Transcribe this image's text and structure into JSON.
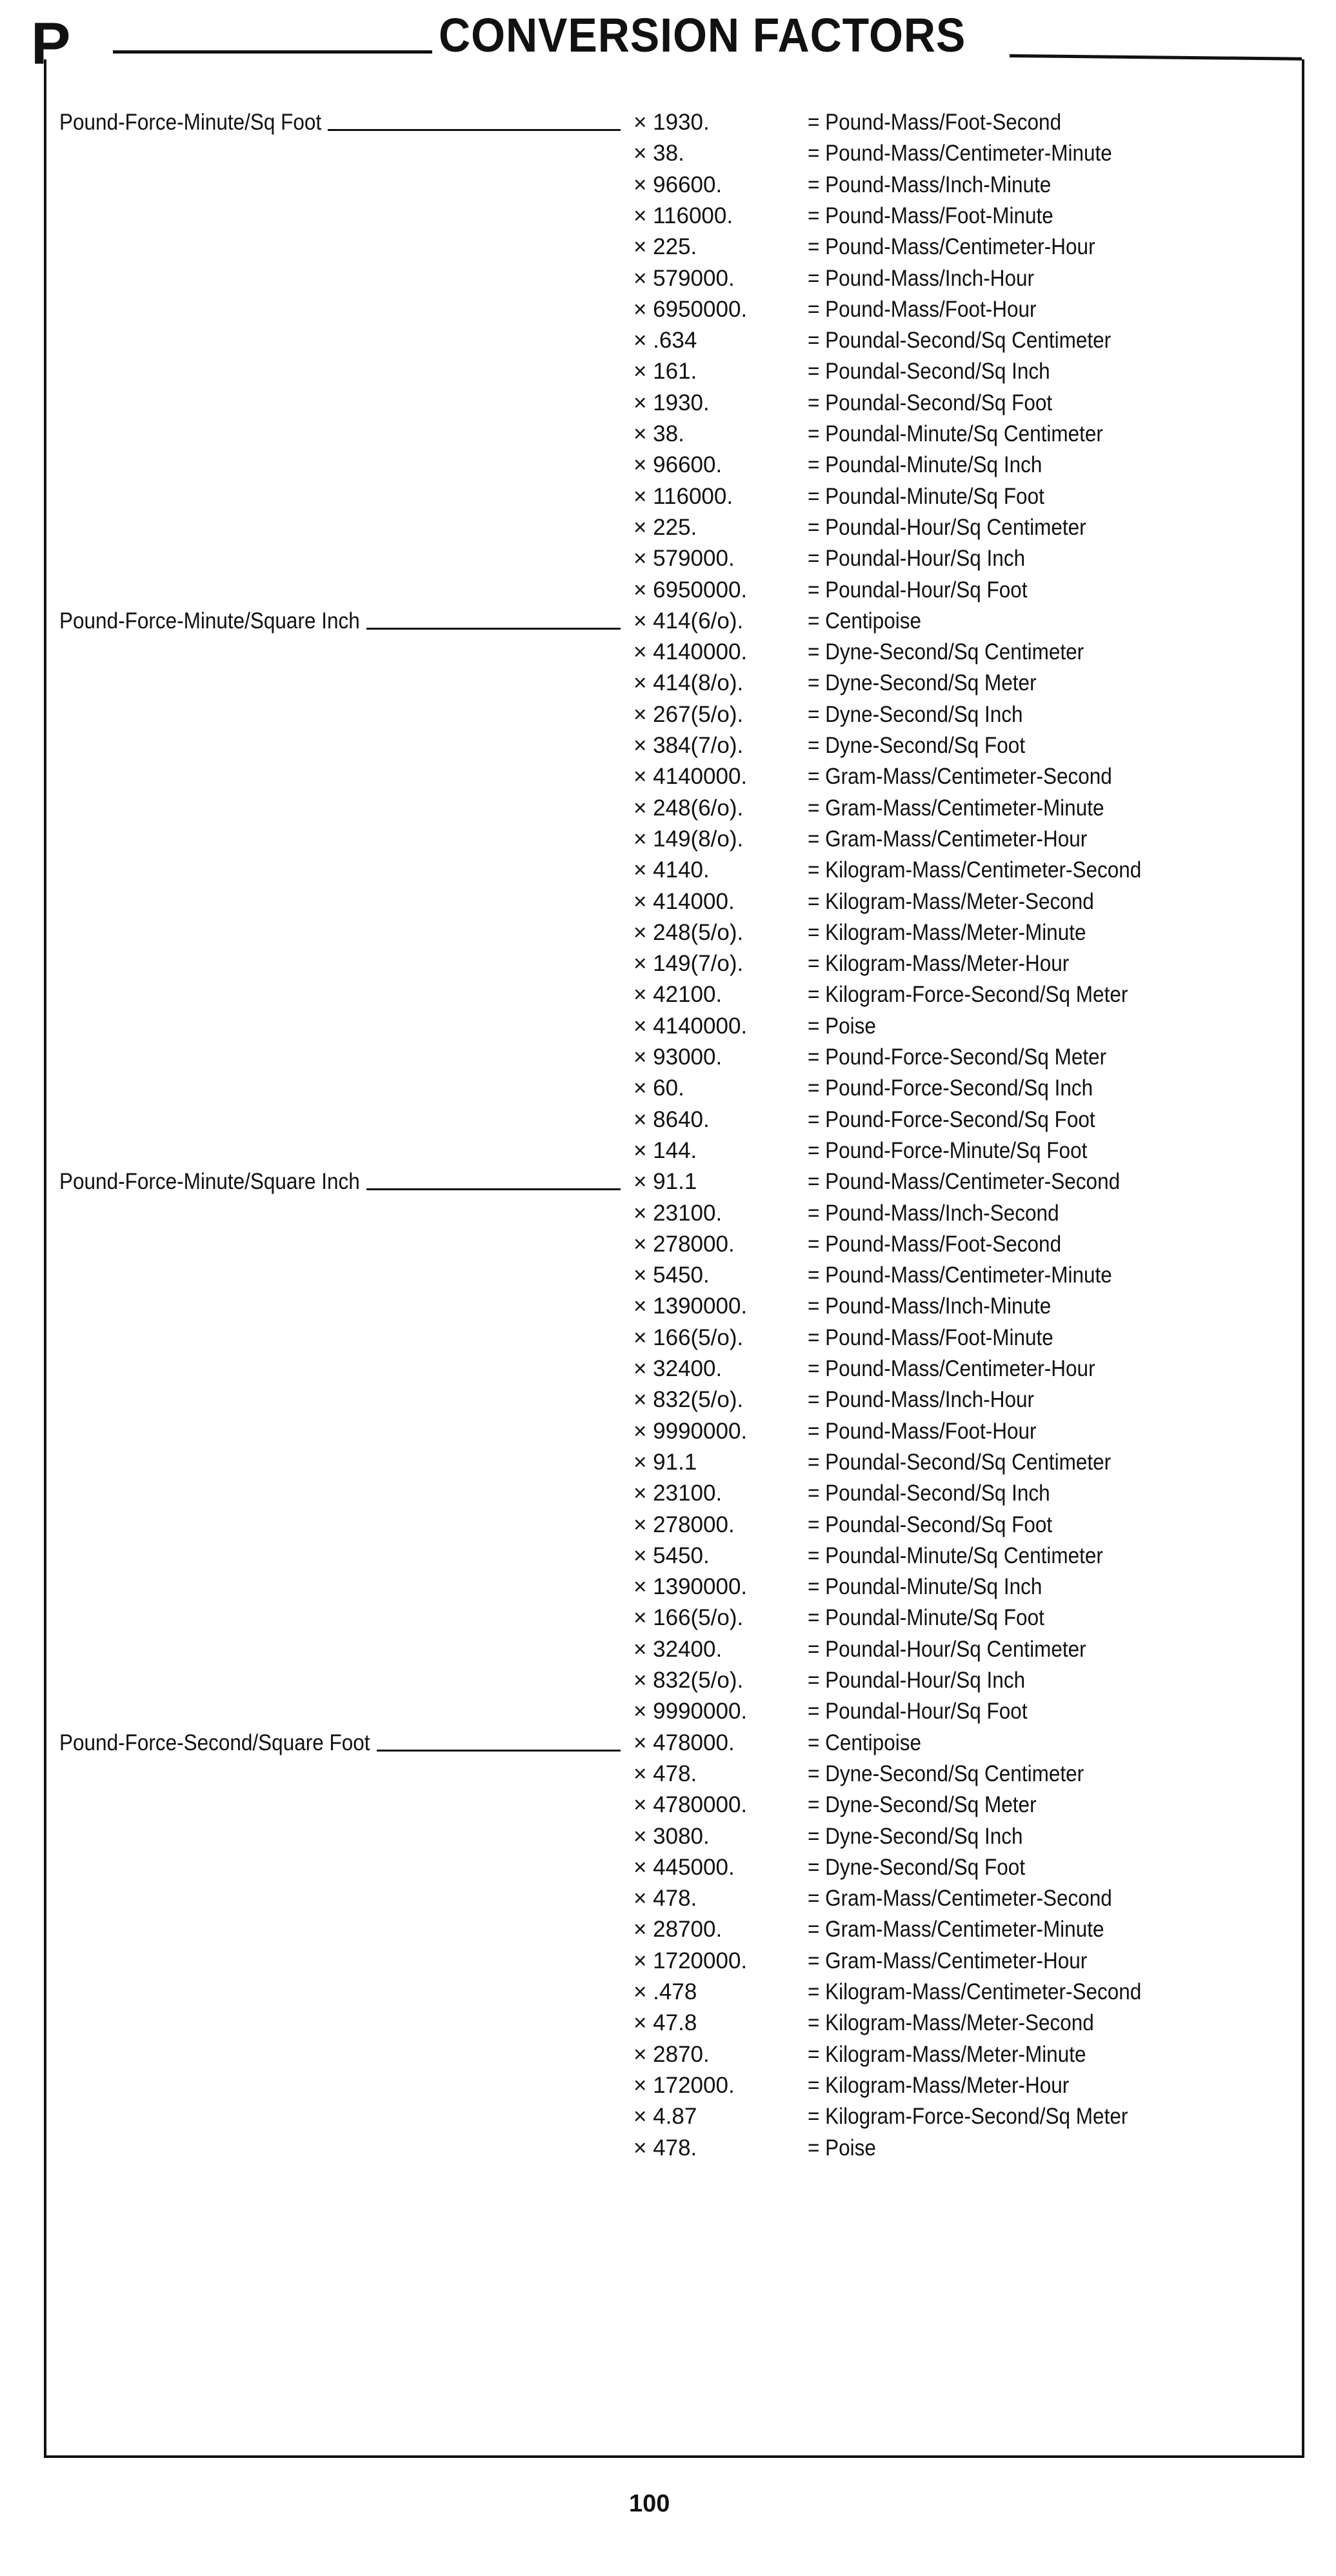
{
  "header": {
    "letter": "P",
    "title": "CONVERSION FACTORS"
  },
  "groups": [
    {
      "label": "Pound-Force-Minute/Sq Foot",
      "rows": [
        [
          "× 1930.",
          "= Pound-Mass/Foot-Second"
        ],
        [
          "× 38.",
          "= Pound-Mass/Centimeter-Minute"
        ],
        [
          "× 96600.",
          "= Pound-Mass/Inch-Minute"
        ],
        [
          "× 116000.",
          "= Pound-Mass/Foot-Minute"
        ],
        [
          "× 225.",
          "= Pound-Mass/Centimeter-Hour"
        ],
        [
          "× 579000.",
          "= Pound-Mass/Inch-Hour"
        ],
        [
          "× 6950000.",
          "= Pound-Mass/Foot-Hour"
        ],
        [
          "× .634",
          "= Poundal-Second/Sq Centimeter"
        ],
        [
          "× 161.",
          "= Poundal-Second/Sq Inch"
        ],
        [
          "× 1930.",
          "= Poundal-Second/Sq Foot"
        ],
        [
          "× 38.",
          "= Poundal-Minute/Sq Centimeter"
        ],
        [
          "× 96600.",
          "= Poundal-Minute/Sq Inch"
        ],
        [
          "× 116000.",
          "= Poundal-Minute/Sq Foot"
        ],
        [
          "× 225.",
          "= Poundal-Hour/Sq Centimeter"
        ],
        [
          "× 579000.",
          "= Poundal-Hour/Sq Inch"
        ],
        [
          "× 6950000.",
          "= Poundal-Hour/Sq Foot"
        ]
      ]
    },
    {
      "label": "Pound-Force-Minute/Square Inch",
      "rows": [
        [
          "× 414(6/o).",
          "= Centipoise"
        ],
        [
          "× 4140000.",
          "= Dyne-Second/Sq Centimeter"
        ],
        [
          "× 414(8/o).",
          "= Dyne-Second/Sq Meter"
        ],
        [
          "× 267(5/o).",
          "= Dyne-Second/Sq Inch"
        ],
        [
          "× 384(7/o).",
          "= Dyne-Second/Sq Foot"
        ],
        [
          "× 4140000.",
          "= Gram-Mass/Centimeter-Second"
        ],
        [
          "× 248(6/o).",
          "= Gram-Mass/Centimeter-Minute"
        ],
        [
          "× 149(8/o).",
          "= Gram-Mass/Centimeter-Hour"
        ],
        [
          "× 4140.",
          "= Kilogram-Mass/Centimeter-Second"
        ],
        [
          "× 414000.",
          "= Kilogram-Mass/Meter-Second"
        ],
        [
          "× 248(5/o).",
          "= Kilogram-Mass/Meter-Minute"
        ],
        [
          "× 149(7/o).",
          "= Kilogram-Mass/Meter-Hour"
        ],
        [
          "× 42100.",
          "= Kilogram-Force-Second/Sq Meter"
        ],
        [
          "× 4140000.",
          "= Poise"
        ],
        [
          "× 93000.",
          "= Pound-Force-Second/Sq Meter"
        ],
        [
          "× 60.",
          "= Pound-Force-Second/Sq Inch"
        ],
        [
          "× 8640.",
          "= Pound-Force-Second/Sq Foot"
        ],
        [
          "× 144.",
          "= Pound-Force-Minute/Sq Foot"
        ]
      ]
    },
    {
      "label": "Pound-Force-Minute/Square Inch",
      "rows": [
        [
          "× 91.1",
          "= Pound-Mass/Centimeter-Second"
        ],
        [
          "× 23100.",
          "= Pound-Mass/Inch-Second"
        ],
        [
          "× 278000.",
          "= Pound-Mass/Foot-Second"
        ],
        [
          "× 5450.",
          "= Pound-Mass/Centimeter-Minute"
        ],
        [
          "× 1390000.",
          "= Pound-Mass/Inch-Minute"
        ],
        [
          "× 166(5/o).",
          "= Pound-Mass/Foot-Minute"
        ],
        [
          "× 32400.",
          "= Pound-Mass/Centimeter-Hour"
        ],
        [
          "× 832(5/o).",
          "= Pound-Mass/Inch-Hour"
        ],
        [
          "× 9990000.",
          "= Pound-Mass/Foot-Hour"
        ],
        [
          "× 91.1",
          "= Poundal-Second/Sq Centimeter"
        ],
        [
          "× 23100.",
          "= Poundal-Second/Sq Inch"
        ],
        [
          "× 278000.",
          "= Poundal-Second/Sq Foot"
        ],
        [
          "× 5450.",
          "= Poundal-Minute/Sq Centimeter"
        ],
        [
          "× 1390000.",
          "= Poundal-Minute/Sq Inch"
        ],
        [
          "× 166(5/o).",
          "= Poundal-Minute/Sq Foot"
        ],
        [
          "× 32400.",
          "= Poundal-Hour/Sq Centimeter"
        ],
        [
          "× 832(5/o).",
          "= Poundal-Hour/Sq Inch"
        ],
        [
          "× 9990000.",
          "= Poundal-Hour/Sq Foot"
        ]
      ]
    },
    {
      "label": "Pound-Force-Second/Square Foot",
      "rows": [
        [
          "× 478000.",
          "= Centipoise"
        ],
        [
          "× 478.",
          "= Dyne-Second/Sq Centimeter"
        ],
        [
          "× 4780000.",
          "= Dyne-Second/Sq Meter"
        ],
        [
          "× 3080.",
          "= Dyne-Second/Sq Inch"
        ],
        [
          "× 445000.",
          "= Dyne-Second/Sq Foot"
        ],
        [
          "× 478.",
          "= Gram-Mass/Centimeter-Second"
        ],
        [
          "× 28700.",
          "= Gram-Mass/Centimeter-Minute"
        ],
        [
          "× 1720000.",
          "= Gram-Mass/Centimeter-Hour"
        ],
        [
          "× .478",
          "= Kilogram-Mass/Centimeter-Second"
        ],
        [
          "× 47.8",
          "= Kilogram-Mass/Meter-Second"
        ],
        [
          "× 2870.",
          "= Kilogram-Mass/Meter-Minute"
        ],
        [
          "× 172000.",
          "= Kilogram-Mass/Meter-Hour"
        ],
        [
          "× 4.87",
          "= Kilogram-Force-Second/Sq Meter"
        ],
        [
          "× 478.",
          "= Poise"
        ]
      ]
    }
  ],
  "footer": {
    "page_number": "100"
  }
}
